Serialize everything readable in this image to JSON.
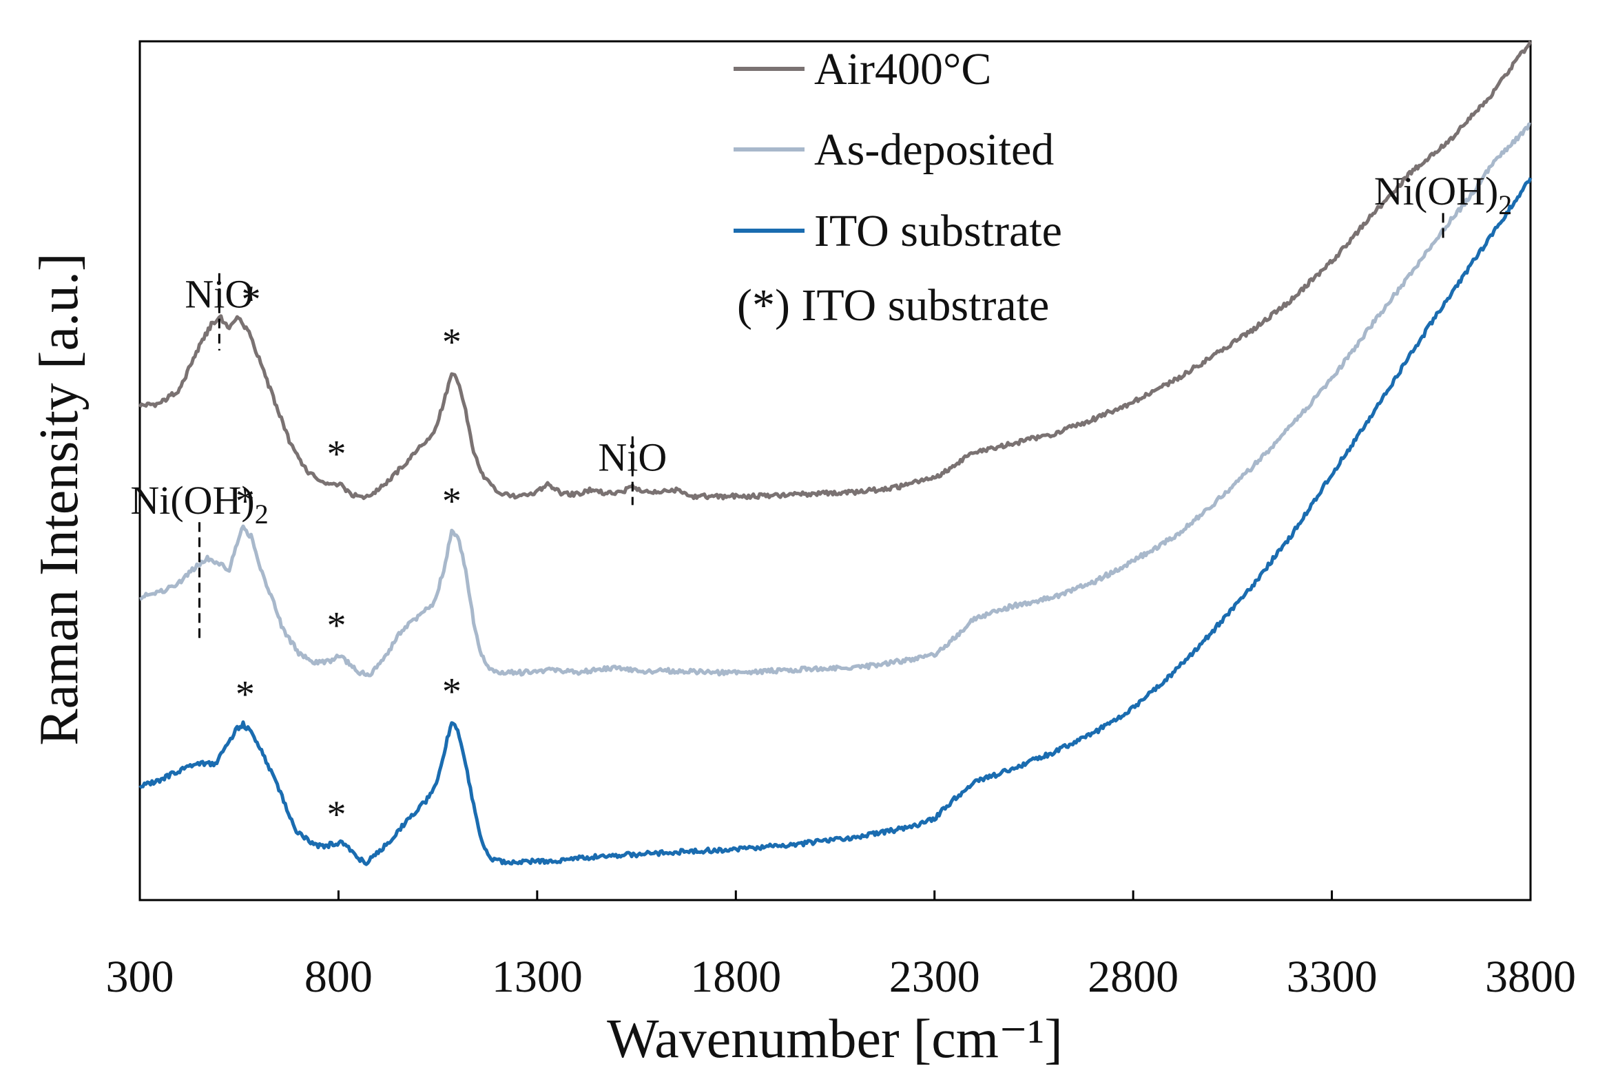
{
  "chart_data": {
    "type": "line",
    "title": "",
    "xlabel": "Wavenumber [cm⁻¹]",
    "ylabel": "Raman Intensity [a.u.]",
    "xlim": [
      300,
      3800
    ],
    "ylim": [
      0,
      100
    ],
    "x_ticks": [
      "300",
      "800",
      "1300",
      "1800",
      "2300",
      "2800",
      "3300",
      "3800"
    ],
    "y_ticks": [],
    "grid": false,
    "legend_position": "top-center",
    "legend_note": "(*) ITO substrate",
    "series": [
      {
        "name": "Air400°C",
        "color": "#7a7272",
        "points": [
          [
            300,
            57.6
          ],
          [
            350,
            57.8
          ],
          [
            400,
            59.5
          ],
          [
            450,
            64.5
          ],
          [
            480,
            67.0
          ],
          [
            500,
            68.0
          ],
          [
            525,
            66.5
          ],
          [
            545,
            68.0
          ],
          [
            575,
            66.0
          ],
          [
            600,
            63.0
          ],
          [
            640,
            58.0
          ],
          [
            680,
            53.0
          ],
          [
            720,
            50.0
          ],
          [
            760,
            48.5
          ],
          [
            800,
            48.5
          ],
          [
            830,
            47.3
          ],
          [
            855,
            46.8
          ],
          [
            880,
            47.0
          ],
          [
            920,
            48.5
          ],
          [
            960,
            50.5
          ],
          [
            1000,
            52.5
          ],
          [
            1040,
            54.5
          ],
          [
            1065,
            58.0
          ],
          [
            1085,
            61.5
          ],
          [
            1100,
            60.5
          ],
          [
            1120,
            57.0
          ],
          [
            1140,
            52.0
          ],
          [
            1170,
            49.0
          ],
          [
            1200,
            47.5
          ],
          [
            1240,
            47.0
          ],
          [
            1260,
            47.0
          ],
          [
            1300,
            47.5
          ],
          [
            1330,
            48.5
          ],
          [
            1360,
            47.3
          ],
          [
            1400,
            47.3
          ],
          [
            1440,
            47.8
          ],
          [
            1480,
            47.3
          ],
          [
            1520,
            47.6
          ],
          [
            1540,
            48.3
          ],
          [
            1560,
            47.6
          ],
          [
            1580,
            47.5
          ],
          [
            1620,
            47.6
          ],
          [
            1650,
            47.8
          ],
          [
            1690,
            47.0
          ],
          [
            1740,
            47.0
          ],
          [
            1800,
            47.0
          ],
          [
            1900,
            47.1
          ],
          [
            2000,
            47.3
          ],
          [
            2100,
            47.5
          ],
          [
            2200,
            48.0
          ],
          [
            2300,
            49.2
          ],
          [
            2350,
            50.6
          ],
          [
            2400,
            52.2
          ],
          [
            2450,
            52.6
          ],
          [
            2500,
            53.2
          ],
          [
            2600,
            54.3
          ],
          [
            2700,
            56.0
          ],
          [
            2800,
            58.0
          ],
          [
            2900,
            60.4
          ],
          [
            3000,
            63.3
          ],
          [
            3100,
            66.4
          ],
          [
            3200,
            70.0
          ],
          [
            3300,
            74.4
          ],
          [
            3400,
            79.7
          ],
          [
            3500,
            84.8
          ],
          [
            3600,
            88.6
          ],
          [
            3700,
            93.7
          ],
          [
            3800,
            100.0
          ]
        ]
      },
      {
        "name": "As-deposited",
        "color": "#a8b8cb",
        "points": [
          [
            300,
            35.3
          ],
          [
            350,
            35.8
          ],
          [
            400,
            37.0
          ],
          [
            440,
            38.8
          ],
          [
            470,
            39.8
          ],
          [
            500,
            39.2
          ],
          [
            525,
            38.5
          ],
          [
            545,
            41.5
          ],
          [
            560,
            43.5
          ],
          [
            580,
            42.3
          ],
          [
            600,
            39.0
          ],
          [
            630,
            35.5
          ],
          [
            660,
            31.5
          ],
          [
            700,
            28.8
          ],
          [
            740,
            27.7
          ],
          [
            780,
            27.8
          ],
          [
            800,
            28.5
          ],
          [
            820,
            27.8
          ],
          [
            850,
            26.5
          ],
          [
            880,
            26.3
          ],
          [
            920,
            28.5
          ],
          [
            960,
            31.5
          ],
          [
            1000,
            33.0
          ],
          [
            1040,
            34.5
          ],
          [
            1065,
            38.5
          ],
          [
            1085,
            43.0
          ],
          [
            1100,
            42.5
          ],
          [
            1120,
            38.5
          ],
          [
            1140,
            32.5
          ],
          [
            1160,
            28.5
          ],
          [
            1180,
            26.8
          ],
          [
            1200,
            26.5
          ],
          [
            1260,
            26.5
          ],
          [
            1350,
            26.8
          ],
          [
            1400,
            26.5
          ],
          [
            1450,
            26.8
          ],
          [
            1500,
            27.1
          ],
          [
            1550,
            26.7
          ],
          [
            1650,
            26.7
          ],
          [
            1750,
            26.5
          ],
          [
            1850,
            26.6
          ],
          [
            1950,
            26.8
          ],
          [
            2050,
            27.0
          ],
          [
            2150,
            27.3
          ],
          [
            2300,
            28.5
          ],
          [
            2350,
            30.5
          ],
          [
            2400,
            32.8
          ],
          [
            2450,
            33.5
          ],
          [
            2500,
            34.3
          ],
          [
            2600,
            35.3
          ],
          [
            2700,
            37.0
          ],
          [
            2800,
            39.5
          ],
          [
            2900,
            42.2
          ],
          [
            3000,
            46.0
          ],
          [
            3100,
            50.4
          ],
          [
            3200,
            55.3
          ],
          [
            3300,
            60.7
          ],
          [
            3400,
            67.0
          ],
          [
            3500,
            73.0
          ],
          [
            3600,
            79.2
          ],
          [
            3650,
            82.0
          ],
          [
            3700,
            85.5
          ],
          [
            3800,
            90.3
          ]
        ]
      },
      {
        "name": "ITO substrate",
        "color": "#1a6cb0",
        "points": [
          [
            300,
            13.2
          ],
          [
            350,
            14.0
          ],
          [
            400,
            15.1
          ],
          [
            450,
            16.0
          ],
          [
            490,
            15.8
          ],
          [
            520,
            18.0
          ],
          [
            545,
            20.0
          ],
          [
            560,
            20.5
          ],
          [
            580,
            19.5
          ],
          [
            610,
            17.0
          ],
          [
            650,
            13.0
          ],
          [
            690,
            8.2
          ],
          [
            730,
            6.7
          ],
          [
            760,
            6.2
          ],
          [
            790,
            6.6
          ],
          [
            805,
            6.7
          ],
          [
            825,
            6.0
          ],
          [
            850,
            4.8
          ],
          [
            870,
            4.4
          ],
          [
            900,
            5.5
          ],
          [
            940,
            7.5
          ],
          [
            980,
            9.7
          ],
          [
            1020,
            11.5
          ],
          [
            1050,
            14.0
          ],
          [
            1070,
            18.0
          ],
          [
            1085,
            20.8
          ],
          [
            1100,
            20.0
          ],
          [
            1120,
            16.0
          ],
          [
            1140,
            11.0
          ],
          [
            1160,
            7.0
          ],
          [
            1180,
            5.0
          ],
          [
            1200,
            4.5
          ],
          [
            1260,
            4.5
          ],
          [
            1350,
            4.6
          ],
          [
            1450,
            5.1
          ],
          [
            1550,
            5.3
          ],
          [
            1650,
            5.6
          ],
          [
            1750,
            5.8
          ],
          [
            1850,
            6.1
          ],
          [
            1950,
            6.5
          ],
          [
            2050,
            7.0
          ],
          [
            2150,
            7.7
          ],
          [
            2250,
            8.6
          ],
          [
            2300,
            9.5
          ],
          [
            2350,
            11.8
          ],
          [
            2400,
            13.7
          ],
          [
            2450,
            14.5
          ],
          [
            2500,
            15.4
          ],
          [
            2600,
            17.2
          ],
          [
            2700,
            19.4
          ],
          [
            2800,
            22.4
          ],
          [
            2900,
            26.4
          ],
          [
            3000,
            31.3
          ],
          [
            3100,
            36.6
          ],
          [
            3200,
            42.6
          ],
          [
            3300,
            49.6
          ],
          [
            3400,
            56.4
          ],
          [
            3500,
            63.7
          ],
          [
            3600,
            70.6
          ],
          [
            3700,
            77.3
          ],
          [
            3800,
            84.1
          ]
        ]
      }
    ],
    "annotations": [
      {
        "text": "NiO",
        "x": 500,
        "y": 69,
        "kind": "peak-label",
        "marker_y": [
          64,
          73
        ]
      },
      {
        "text": "NiO",
        "x": 1540,
        "y": 50,
        "kind": "peak-label",
        "marker_y": [
          46,
          54
        ]
      },
      {
        "text": "Ni(OH)",
        "sub": "2",
        "x": 450,
        "y": 45,
        "kind": "peak-label",
        "marker_y": [
          30,
          44
        ]
      },
      {
        "text": "Ni(OH)",
        "sub": "2",
        "x": 3580,
        "y": 81,
        "kind": "peak-label",
        "marker_y": [
          77,
          80
        ]
      },
      {
        "text": "*",
        "x": 580,
        "y": 68.5,
        "kind": "substrate-peak"
      },
      {
        "text": "*",
        "x": 795,
        "y": 50.5,
        "kind": "substrate-peak"
      },
      {
        "text": "*",
        "x": 1085,
        "y": 63.5,
        "kind": "substrate-peak"
      },
      {
        "text": "*",
        "x": 565,
        "y": 45.0,
        "kind": "substrate-peak"
      },
      {
        "text": "*",
        "x": 795,
        "y": 30.5,
        "kind": "substrate-peak"
      },
      {
        "text": "*",
        "x": 1085,
        "y": 45.0,
        "kind": "substrate-peak"
      },
      {
        "text": "*",
        "x": 565,
        "y": 22.5,
        "kind": "substrate-peak"
      },
      {
        "text": "*",
        "x": 795,
        "y": 8.5,
        "kind": "substrate-peak"
      },
      {
        "text": "*",
        "x": 1085,
        "y": 22.8,
        "kind": "substrate-peak"
      }
    ]
  }
}
